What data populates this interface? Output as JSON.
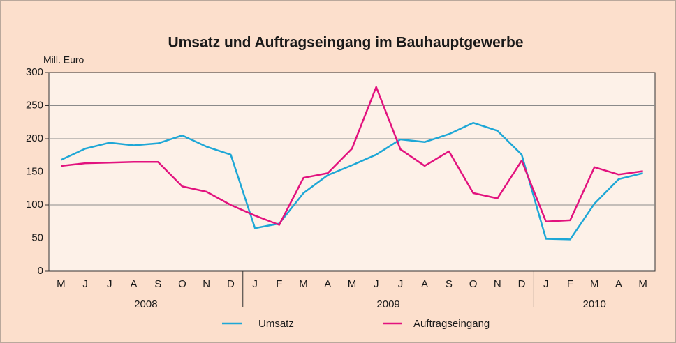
{
  "chart_data": {
    "type": "line",
    "title": "Umsatz und Auftragseingang im Bauhauptgewerbe",
    "y_label": "Mill. Euro",
    "category_groups": [
      {
        "name": "2008",
        "categories": [
          "M",
          "J",
          "J",
          "A",
          "S",
          "O",
          "N",
          "D"
        ]
      },
      {
        "name": "2009",
        "categories": [
          "J",
          "F",
          "M",
          "A",
          "M",
          "J",
          "J",
          "A",
          "S",
          "O",
          "N",
          "D"
        ]
      },
      {
        "name": "2010",
        "categories": [
          "J",
          "F",
          "M",
          "A",
          "M"
        ]
      }
    ],
    "series": [
      {
        "name": "Umsatz",
        "color": "#1ea7d6",
        "values": [
          168,
          185,
          194,
          190,
          193,
          205,
          188,
          176,
          65,
          72,
          118,
          145,
          160,
          176,
          199,
          195,
          207,
          224,
          212,
          176,
          49,
          48,
          102,
          139,
          148
        ]
      },
      {
        "name": "Auftragseingang",
        "color": "#e2127e",
        "values": [
          159,
          163,
          164,
          165,
          165,
          128,
          120,
          100,
          84,
          70,
          141,
          148,
          185,
          278,
          184,
          159,
          181,
          118,
          110,
          167,
          75,
          77,
          157,
          146,
          151
        ]
      }
    ],
    "ylim": [
      0,
      300
    ],
    "yticks": [
      0,
      50,
      100,
      150,
      200,
      250,
      300
    ],
    "grid": true
  }
}
